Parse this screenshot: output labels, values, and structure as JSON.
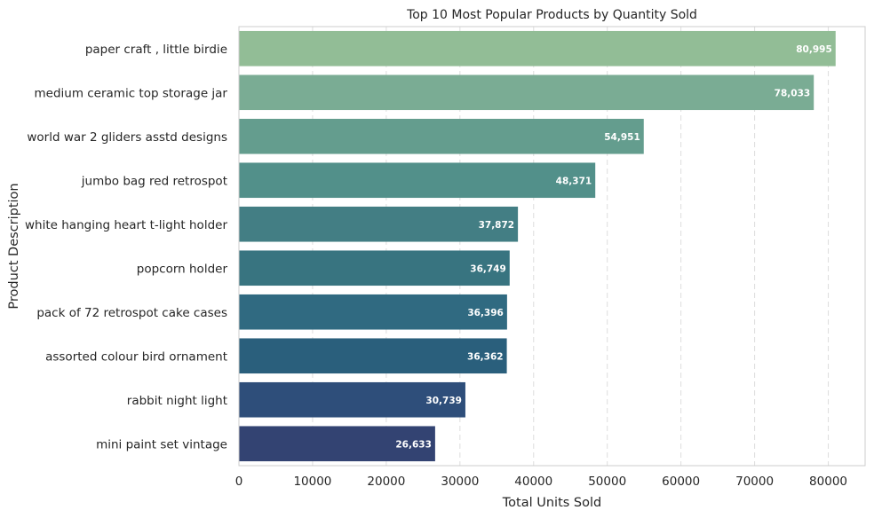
{
  "chart_data": {
    "type": "bar",
    "orientation": "horizontal",
    "title": "Top 10 Most Popular Products by Quantity Sold",
    "xlabel": "Total Units Sold",
    "ylabel": "Product Description",
    "categories": [
      "paper craft , little birdie",
      "medium ceramic top storage jar",
      "world war 2 gliders asstd designs",
      "jumbo bag red retrospot",
      "white hanging heart t-light holder",
      "popcorn holder",
      "pack of 72 retrospot cake cases",
      "assorted colour bird ornament",
      "rabbit night light",
      "mini paint set vintage"
    ],
    "values": [
      80995,
      78033,
      54951,
      48371,
      37872,
      36749,
      36396,
      36362,
      30739,
      26633
    ],
    "value_labels": [
      "80,995",
      "78,033",
      "54,951",
      "48,371",
      "37,872",
      "36,749",
      "36,396",
      "36,362",
      "30,739",
      "26,633"
    ],
    "xlim": [
      0,
      85000
    ],
    "xticks": [
      0,
      10000,
      20000,
      30000,
      40000,
      50000,
      60000,
      70000,
      80000
    ],
    "xtick_labels": [
      "0",
      "10000",
      "20000",
      "30000",
      "40000",
      "50000",
      "60000",
      "70000",
      "80000"
    ],
    "grid": "x-dashed",
    "colors": [
      "#92bd96",
      "#7aac94",
      "#649d8e",
      "#52908a",
      "#437e84",
      "#387480",
      "#306a81",
      "#2a5f7c",
      "#2e4e7a",
      "#334372"
    ]
  }
}
